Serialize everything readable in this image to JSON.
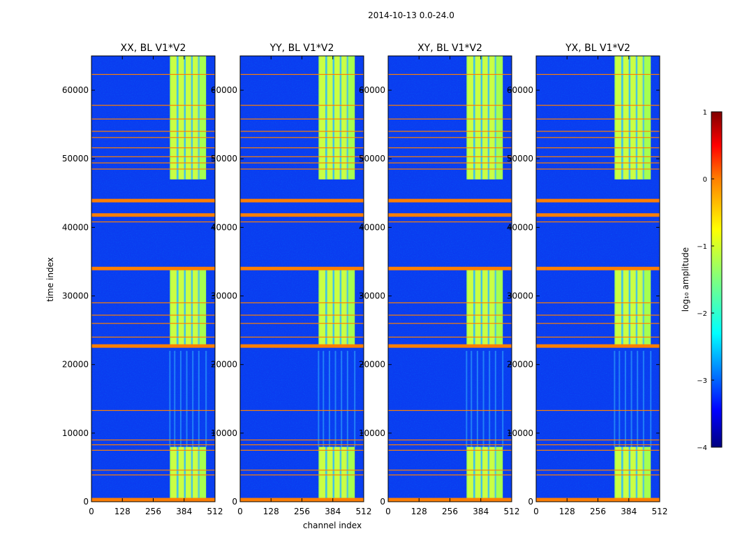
{
  "figure": {
    "suptitle": "2014-10-13 0.0-24.0",
    "xlabel": "channel index",
    "ylabel": "time index"
  },
  "chart_data": {
    "type": "heatmap",
    "x_ticks": [
      0,
      128,
      256,
      384,
      512
    ],
    "y_ticks": [
      0,
      10000,
      20000,
      30000,
      40000,
      50000,
      60000
    ],
    "x_range": [
      0,
      512
    ],
    "y_range": [
      0,
      65000
    ],
    "panels": [
      {
        "title": "XX, BL V1*V2",
        "y_tick_labels": [
          "0",
          "10000",
          "20000",
          "30000",
          "40000",
          "50000",
          "60000"
        ]
      },
      {
        "title": "YY, BL V1*V2",
        "y_tick_labels": [
          "0",
          "10000",
          "20000",
          "30000",
          "40000",
          "50000",
          "60000"
        ]
      },
      {
        "title": "XY, BL V1*V2",
        "y_tick_labels": [
          "0",
          "10000",
          "20000",
          "30000",
          "40000",
          "50000",
          "60000"
        ]
      },
      {
        "title": "YX, BL V1*V2",
        "y_tick_labels": [
          "0",
          "10000",
          "20000",
          "30000",
          "40000",
          "50000",
          "60000"
        ]
      }
    ],
    "bright_channel_range": [
      325,
      475
    ],
    "bright_time_windows": [
      [
        0,
        8000
      ],
      [
        22500,
        34000
      ],
      [
        47000,
        65000
      ]
    ],
    "flagged_rows_thick": [
      300,
      22700,
      34000,
      41800,
      43900
    ],
    "flagged_rows_thin": [
      3900,
      4600,
      7500,
      8300,
      9000,
      13300,
      24000,
      26000,
      27200,
      29000,
      40800,
      48500,
      49400,
      50300,
      51600,
      53100,
      54000,
      55800,
      57800,
      62300
    ],
    "colorbar": {
      "label": "log₁₀ amplitude",
      "ticks": [
        "1",
        "0",
        "−1",
        "−2",
        "−3",
        "−4"
      ],
      "tick_values": [
        1,
        0,
        -1,
        -2,
        -3,
        -4
      ],
      "vmin": -4,
      "vmax": 1,
      "colormap": "jet",
      "colors": [
        "#00007f",
        "#0000ff",
        "#007fff",
        "#00ffff",
        "#7fff7f",
        "#ffff00",
        "#ff7f00",
        "#ff0000",
        "#7f0000"
      ]
    },
    "flag_color": "#ff7f00",
    "background_color": "#0a3cf0"
  }
}
